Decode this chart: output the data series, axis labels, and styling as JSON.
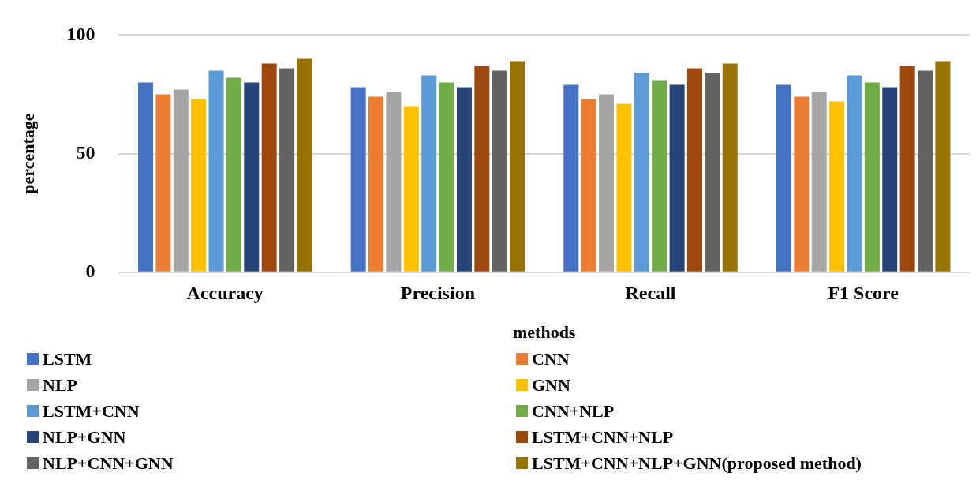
{
  "chart_data": {
    "type": "bar",
    "xlabel": "methods",
    "ylabel": "percentage",
    "categories": [
      "Accuracy",
      "Precision",
      "Recall",
      "F1 Score"
    ],
    "series": [
      {
        "name": "LSTM",
        "color": "#4472c4",
        "values": [
          80,
          78,
          79,
          79
        ]
      },
      {
        "name": "CNN",
        "color": "#ed7d31",
        "values": [
          75,
          74,
          73,
          74
        ]
      },
      {
        "name": "NLP",
        "color": "#a5a5a5",
        "values": [
          77,
          76,
          75,
          76
        ]
      },
      {
        "name": "GNN",
        "color": "#ffc000",
        "values": [
          73,
          70,
          71,
          72
        ]
      },
      {
        "name": "LSTM+CNN",
        "color": "#5b9bd5",
        "values": [
          85,
          83,
          84,
          83
        ]
      },
      {
        "name": "CNN+NLP",
        "color": "#70ad47",
        "values": [
          82,
          80,
          81,
          80
        ]
      },
      {
        "name": "NLP+GNN",
        "color": "#264478",
        "values": [
          80,
          78,
          79,
          78
        ]
      },
      {
        "name": "LSTM+CNN+NLP",
        "color": "#9e480e",
        "values": [
          88,
          87,
          86,
          87
        ]
      },
      {
        "name": "NLP+CNN+GNN",
        "color": "#636363",
        "values": [
          86,
          85,
          84,
          85
        ]
      },
      {
        "name": "LSTM+CNN+NLP+GNN(proposed method)",
        "color": "#997300",
        "values": [
          90,
          89,
          88,
          89
        ]
      }
    ],
    "ylim": [
      0,
      100
    ],
    "yticks": [
      0,
      50,
      100
    ],
    "grid": "y",
    "legend": "bottom"
  }
}
